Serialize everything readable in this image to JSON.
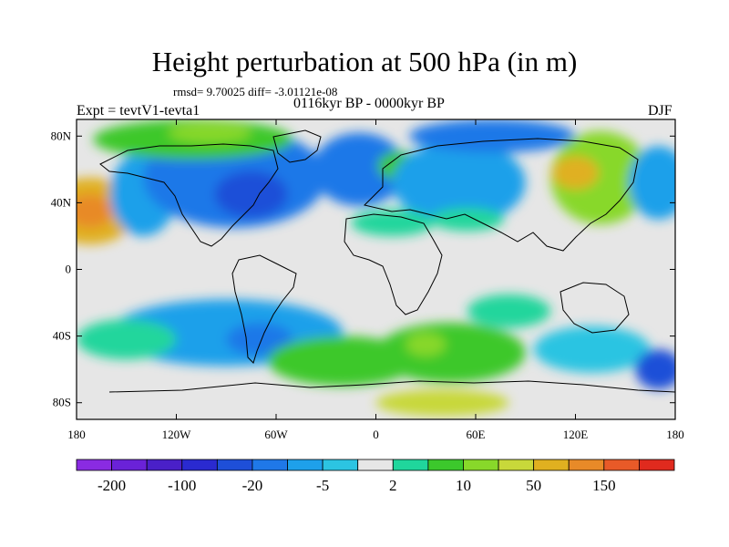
{
  "chart_data": {
    "type": "heatmap",
    "title": "Height perturbation at 500 hPa (in m)",
    "subtitle": "rmsd= 9.70025 diff= -3.01121e-08",
    "left_label": "Expt = tevtV1-tevta1",
    "center_label": "0116kyr BP - 0000kyr BP",
    "right_label": "DJF",
    "x_ticks": [
      {
        "value": -180,
        "label": "180"
      },
      {
        "value": -120,
        "label": "120W"
      },
      {
        "value": -60,
        "label": "60W"
      },
      {
        "value": 0,
        "label": "0"
      },
      {
        "value": 60,
        "label": "60E"
      },
      {
        "value": 120,
        "label": "120E"
      },
      {
        "value": 180,
        "label": "180"
      }
    ],
    "y_ticks": [
      {
        "value": 80,
        "label": "80N"
      },
      {
        "value": 40,
        "label": "40N"
      },
      {
        "value": 0,
        "label": "0"
      },
      {
        "value": -40,
        "label": "40S"
      },
      {
        "value": -80,
        "label": "80S"
      }
    ],
    "xlim": [
      -180,
      180
    ],
    "ylim": [
      -90,
      90
    ],
    "colorbar": {
      "colors": [
        "#8a2be2",
        "#6a22d8",
        "#4a20c8",
        "#2a2ad0",
        "#1e4fd8",
        "#1f78e8",
        "#1ea0ea",
        "#2cc4e2",
        "#e6e6e6",
        "#20d69c",
        "#3cc82c",
        "#88d82a",
        "#c8d83a",
        "#e0b020",
        "#e88a28",
        "#e85a28",
        "#e02a1e"
      ],
      "labels": [
        "-200",
        "-100",
        "-20",
        "-5",
        "2",
        "10",
        "50",
        "150"
      ]
    },
    "regions": [
      {
        "name": "n-pacific-high",
        "lon": -172,
        "lat": 35,
        "rlon": 28,
        "rlat": 20,
        "level": 13
      },
      {
        "name": "n-pacific-high-core",
        "lon": -172,
        "lat": 35,
        "rlon": 14,
        "rlat": 10,
        "level": 14
      },
      {
        "name": "n-pacific-low",
        "lon": -140,
        "lat": 45,
        "rlon": 20,
        "rlat": 25,
        "level": 6
      },
      {
        "name": "north-america-low",
        "lon": -85,
        "lat": 55,
        "rlon": 55,
        "rlat": 30,
        "level": 5
      },
      {
        "name": "north-america-core",
        "lon": -75,
        "lat": 45,
        "rlon": 22,
        "rlat": 14,
        "level": 4
      },
      {
        "name": "arctic-canada-pos",
        "lon": -110,
        "lat": 78,
        "rlon": 60,
        "rlat": 12,
        "level": 10
      },
      {
        "name": "arctic-core",
        "lon": -100,
        "lat": 82,
        "rlon": 25,
        "rlat": 6,
        "level": 11
      },
      {
        "name": "atlantic-low",
        "lon": -10,
        "lat": 60,
        "rlon": 28,
        "rlat": 22,
        "level": 5
      },
      {
        "name": "scandinavian-high",
        "lon": 15,
        "lat": 62,
        "rlon": 14,
        "rlat": 9,
        "level": 10
      },
      {
        "name": "eurasia-low",
        "lon": 50,
        "lat": 52,
        "rlon": 40,
        "rlat": 25,
        "level": 6
      },
      {
        "name": "siberia-low",
        "lon": 70,
        "lat": 80,
        "rlon": 50,
        "rlat": 10,
        "level": 5
      },
      {
        "name": "n-africa-pos",
        "lon": 10,
        "lat": 28,
        "rlon": 25,
        "rlat": 8,
        "level": 9
      },
      {
        "name": "mid-east-pos",
        "lon": 55,
        "lat": 30,
        "rlon": 22,
        "rlat": 7,
        "level": 9
      },
      {
        "name": "w-pacific-high",
        "lon": 135,
        "lat": 55,
        "rlon": 30,
        "rlat": 28,
        "level": 11
      },
      {
        "name": "w-pacific-high-core",
        "lon": 120,
        "lat": 58,
        "rlon": 14,
        "rlat": 10,
        "level": 13
      },
      {
        "name": "aleutian-low",
        "lon": 170,
        "lat": 52,
        "rlon": 18,
        "rlat": 22,
        "level": 6
      },
      {
        "name": "s-pacific-low",
        "lon": -90,
        "lat": -38,
        "rlon": 70,
        "rlat": 20,
        "level": 6
      },
      {
        "name": "s-pacific-low-core",
        "lon": -70,
        "lat": -42,
        "rlon": 20,
        "rlat": 10,
        "level": 5
      },
      {
        "name": "s-pacific-pos",
        "lon": -150,
        "lat": -42,
        "rlon": 30,
        "rlat": 12,
        "level": 9
      },
      {
        "name": "s-atlantic-pos",
        "lon": -20,
        "lat": -55,
        "rlon": 45,
        "rlat": 15,
        "level": 10
      },
      {
        "name": "s-indian-pos",
        "lon": 45,
        "lat": -50,
        "rlon": 45,
        "rlat": 18,
        "level": 10
      },
      {
        "name": "s-indian-core",
        "lon": 30,
        "lat": -45,
        "rlon": 12,
        "rlat": 7,
        "level": 11
      },
      {
        "name": "antarctic-pos",
        "lon": 40,
        "lat": -80,
        "rlon": 40,
        "rlat": 8,
        "level": 12
      },
      {
        "name": "australia-low",
        "lon": 130,
        "lat": -48,
        "rlon": 35,
        "rlat": 14,
        "level": 7
      },
      {
        "name": "tasman-low",
        "lon": 170,
        "lat": -60,
        "rlon": 14,
        "rlat": 12,
        "level": 4
      },
      {
        "name": "indian-tropic-pos",
        "lon": 80,
        "lat": -25,
        "rlon": 25,
        "rlat": 10,
        "level": 9
      }
    ]
  }
}
